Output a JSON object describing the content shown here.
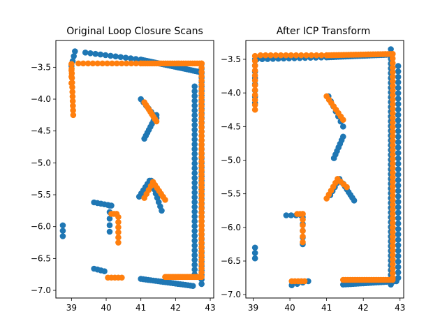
{
  "chart_data": [
    {
      "type": "scatter",
      "title": "Original Loop Closure Scans",
      "xlabel": "",
      "ylabel": "",
      "xlim": [
        38.55,
        43.1
      ],
      "ylim": [
        -7.12,
        -3.08
      ],
      "xticks": [
        39,
        40,
        41,
        42,
        43
      ],
      "yticks": [
        -3.5,
        -4.0,
        -4.5,
        -5.0,
        -5.5,
        -6.0,
        -6.5,
        -7.0
      ],
      "grid": false,
      "series": [
        {
          "color": "#1f77b4",
          "segments": [
            {
              "from": [
                39.0,
                -3.48
              ],
              "to": [
                39.1,
                -3.25
              ],
              "n": 4
            },
            {
              "from": [
                39.4,
                -3.27
              ],
              "to": [
                41.0,
                -3.38
              ],
              "n": 12
            },
            {
              "from": [
                41.0,
                -3.38
              ],
              "to": [
                42.75,
                -3.58
              ],
              "n": 30
            },
            {
              "from": [
                42.75,
                -3.45
              ],
              "to": [
                42.75,
                -6.9
              ],
              "n": 50
            },
            {
              "from": [
                42.55,
                -3.8
              ],
              "to": [
                42.55,
                -6.75
              ],
              "n": 40
            },
            {
              "from": [
                41.0,
                -6.82
              ],
              "to": [
                42.5,
                -6.93
              ],
              "n": 22
            },
            {
              "from": [
                41.1,
                -4.62
              ],
              "to": [
                41.45,
                -4.25
              ],
              "n": 9
            },
            {
              "from": [
                41.0,
                -4.0
              ],
              "to": [
                41.45,
                -4.3
              ],
              "n": 7
            },
            {
              "from": [
                40.95,
                -5.53
              ],
              "to": [
                41.25,
                -5.28
              ],
              "n": 6
            },
            {
              "from": [
                41.3,
                -5.28
              ],
              "to": [
                41.6,
                -5.75
              ],
              "n": 8
            },
            {
              "from": [
                39.65,
                -5.62
              ],
              "to": [
                40.15,
                -5.67
              ],
              "n": 6
            },
            {
              "from": [
                40.1,
                -5.67
              ],
              "to": [
                40.1,
                -6.08
              ],
              "n": 5
            },
            {
              "from": [
                39.65,
                -6.66
              ],
              "to": [
                39.95,
                -6.7
              ],
              "n": 4
            },
            {
              "from": [
                38.75,
                -5.98
              ],
              "to": [
                38.75,
                -6.15
              ],
              "n": 3
            }
          ]
        },
        {
          "color": "#ff7f0e",
          "segments": [
            {
              "from": [
                39.0,
                -3.45
              ],
              "to": [
                39.05,
                -4.25
              ],
              "n": 12
            },
            {
              "from": [
                39.0,
                -3.45
              ],
              "to": [
                39.0,
                -3.75
              ],
              "n": 4
            },
            {
              "from": [
                39.2,
                -3.44
              ],
              "to": [
                41.0,
                -3.44
              ],
              "n": 14
            },
            {
              "from": [
                41.0,
                -3.44
              ],
              "to": [
                42.75,
                -3.44
              ],
              "n": 28
            },
            {
              "from": [
                42.75,
                -3.44
              ],
              "to": [
                42.75,
                -6.72
              ],
              "n": 50
            },
            {
              "from": [
                41.7,
                -6.79
              ],
              "to": [
                42.75,
                -6.79
              ],
              "n": 22
            },
            {
              "from": [
                41.1,
                -4.05
              ],
              "to": [
                41.45,
                -4.35
              ],
              "n": 9
            },
            {
              "from": [
                41.1,
                -5.55
              ],
              "to": [
                41.35,
                -5.3
              ],
              "n": 5
            },
            {
              "from": [
                41.35,
                -5.3
              ],
              "to": [
                41.7,
                -5.58
              ],
              "n": 7
            },
            {
              "from": [
                40.15,
                -5.8
              ],
              "to": [
                40.3,
                -5.8
              ],
              "n": 3
            },
            {
              "from": [
                40.35,
                -5.85
              ],
              "to": [
                40.35,
                -6.25
              ],
              "n": 6
            },
            {
              "from": [
                40.05,
                -6.8
              ],
              "to": [
                40.45,
                -6.8
              ],
              "n": 5
            }
          ]
        }
      ]
    },
    {
      "type": "scatter",
      "title": "After ICP Transform",
      "xlabel": "",
      "ylabel": "",
      "xlim": [
        38.8,
        43.1
      ],
      "ylim": [
        -7.05,
        -3.22
      ],
      "xticks": [
        39,
        40,
        41,
        42,
        43
      ],
      "yticks": [
        -3.5,
        -4.0,
        -4.5,
        -5.0,
        -5.5,
        -6.0,
        -6.5,
        -7.0
      ],
      "grid": false,
      "series": [
        {
          "color": "#1f77b4",
          "segments": [
            {
              "from": [
                39.05,
                -3.5
              ],
              "to": [
                39.05,
                -4.15
              ],
              "n": 8
            },
            {
              "from": [
                39.1,
                -3.5
              ],
              "to": [
                41.0,
                -3.47
              ],
              "n": 14
            },
            {
              "from": [
                41.0,
                -3.47
              ],
              "to": [
                42.75,
                -3.43
              ],
              "n": 28
            },
            {
              "from": [
                42.75,
                -3.35
              ],
              "to": [
                42.75,
                -6.85
              ],
              "n": 50
            },
            {
              "from": [
                42.95,
                -3.6
              ],
              "to": [
                42.95,
                -6.75
              ],
              "n": 40
            },
            {
              "from": [
                41.45,
                -6.85
              ],
              "to": [
                42.9,
                -6.8
              ],
              "n": 22
            },
            {
              "from": [
                41.2,
                -4.97
              ],
              "to": [
                41.45,
                -4.65
              ],
              "n": 7
            },
            {
              "from": [
                41.05,
                -4.05
              ],
              "to": [
                41.45,
                -4.5
              ],
              "n": 7
            },
            {
              "from": [
                41.1,
                -5.52
              ],
              "to": [
                41.35,
                -5.28
              ],
              "n": 5
            },
            {
              "from": [
                41.45,
                -5.35
              ],
              "to": [
                41.75,
                -5.6
              ],
              "n": 7
            },
            {
              "from": [
                39.9,
                -5.82
              ],
              "to": [
                40.3,
                -5.82
              ],
              "n": 4
            },
            {
              "from": [
                40.35,
                -5.85
              ],
              "to": [
                40.35,
                -6.25
              ],
              "n": 5
            },
            {
              "from": [
                40.05,
                -6.86
              ],
              "to": [
                40.5,
                -6.8
              ],
              "n": 4
            },
            {
              "from": [
                39.05,
                -6.3
              ],
              "to": [
                39.05,
                -6.46
              ],
              "n": 3
            }
          ]
        },
        {
          "color": "#ff7f0e",
          "segments": [
            {
              "from": [
                39.05,
                -3.45
              ],
              "to": [
                39.05,
                -4.25
              ],
              "n": 12
            },
            {
              "from": [
                39.2,
                -3.44
              ],
              "to": [
                41.0,
                -3.44
              ],
              "n": 14
            },
            {
              "from": [
                41.0,
                -3.44
              ],
              "to": [
                42.8,
                -3.42
              ],
              "n": 28
            },
            {
              "from": [
                42.8,
                -3.42
              ],
              "to": [
                42.8,
                -6.75
              ],
              "n": 50
            },
            {
              "from": [
                41.45,
                -6.78
              ],
              "to": [
                42.8,
                -6.78
              ],
              "n": 22
            },
            {
              "from": [
                41.0,
                -4.05
              ],
              "to": [
                41.45,
                -4.4
              ],
              "n": 8
            },
            {
              "from": [
                41.0,
                -5.57
              ],
              "to": [
                41.3,
                -5.28
              ],
              "n": 6
            },
            {
              "from": [
                41.3,
                -5.28
              ],
              "to": [
                41.55,
                -5.4
              ],
              "n": 4
            },
            {
              "from": [
                40.2,
                -5.8
              ],
              "to": [
                40.35,
                -5.8
              ],
              "n": 3
            },
            {
              "from": [
                40.35,
                -5.8
              ],
              "to": [
                40.35,
                -6.22
              ],
              "n": 6
            },
            {
              "from": [
                40.05,
                -6.8
              ],
              "to": [
                40.4,
                -6.8
              ],
              "n": 5
            }
          ]
        }
      ]
    }
  ]
}
